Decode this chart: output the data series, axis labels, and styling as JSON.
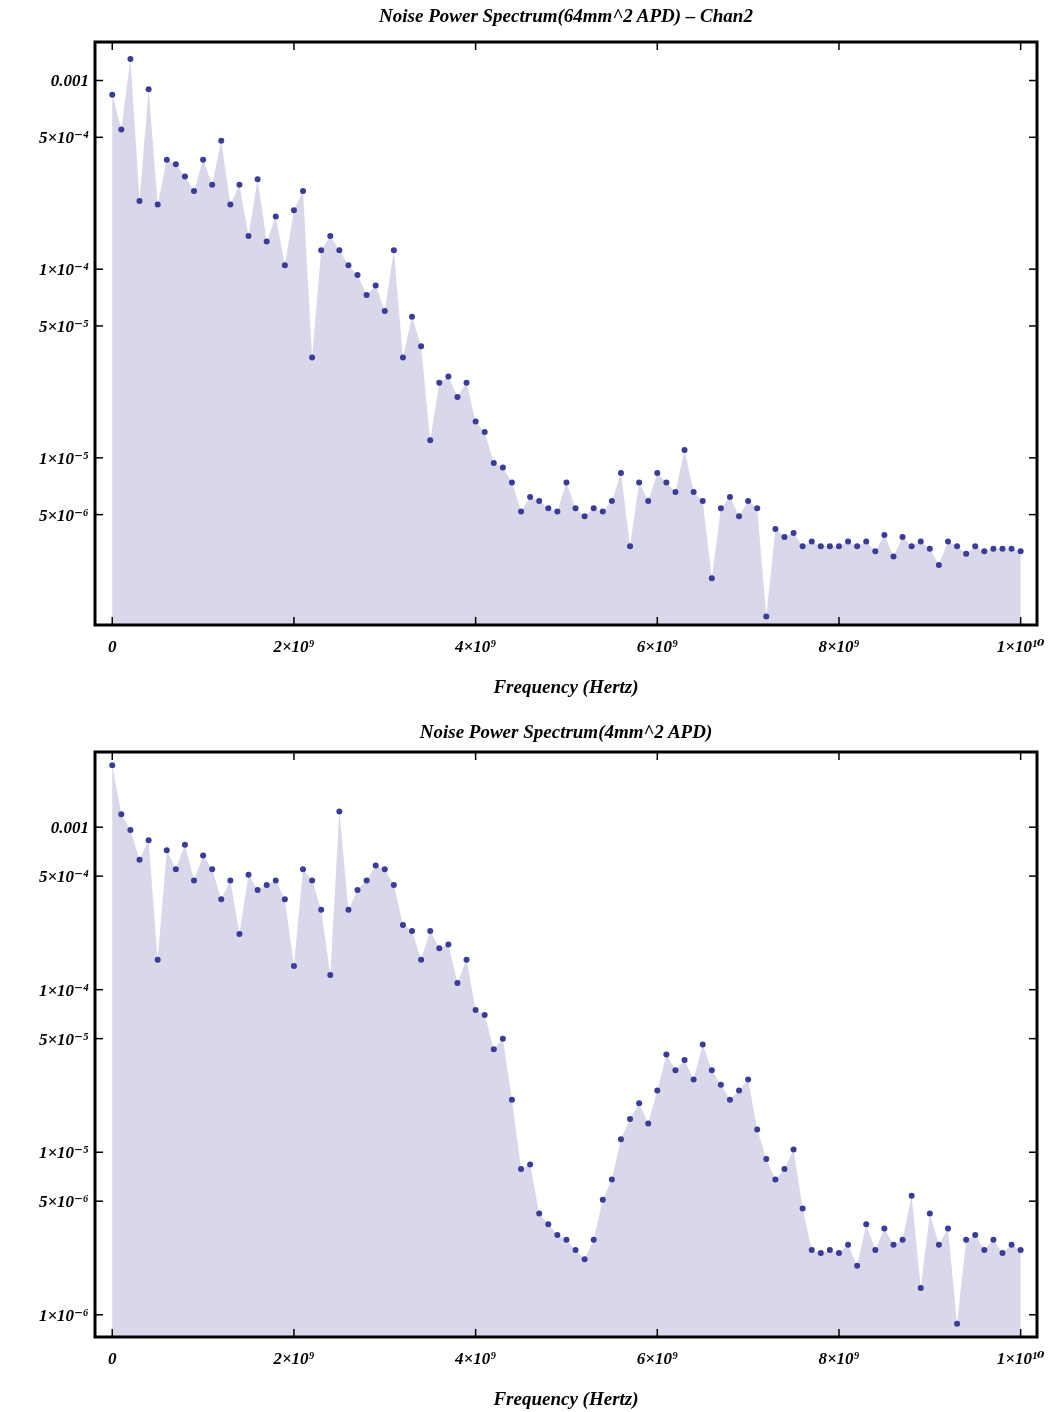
{
  "chart_data": [
    {
      "type": "area",
      "title": "Noise Power Spectrum(64mm^2 APD) – Chan2",
      "xlabel": "Frequency (Hertz)",
      "log": "y",
      "marker": "circle",
      "xlim": [
        -190000000.0,
        10180000000.0
      ],
      "ylim": [
        1.3e-06,
        0.0016
      ],
      "xticks": [
        0,
        {
          "value": 2000000000.0,
          "label": "2×10⁹"
        },
        {
          "value": 4000000000.0,
          "label": "4×10⁹"
        },
        {
          "value": 6000000000.0,
          "label": "6×10⁹"
        },
        {
          "value": 8000000000.0,
          "label": "8×10⁹"
        },
        {
          "value": 10000000000.0,
          "label": "1×10¹⁰"
        }
      ],
      "yticks": [
        0.001,
        {
          "value": 0.0005,
          "label": "5×10⁻⁴"
        },
        {
          "value": 0.0001,
          "label": "1×10⁻⁴"
        },
        {
          "value": 5e-05,
          "label": "5×10⁻⁵"
        },
        {
          "value": 1e-05,
          "label": "1×10⁻⁵"
        },
        {
          "value": 5e-06,
          "label": "5×10⁻⁶"
        }
      ],
      "x": [
        0,
        100000000.0,
        200000000.0,
        300000000.0,
        400000000.0,
        500000000.0,
        600000000.0,
        700000000.0,
        800000000.0,
        900000000.0,
        1000000000.0,
        1100000000.0,
        1200000000.0,
        1300000000.0,
        1400000000.0,
        1500000000.0,
        1600000000.0,
        1700000000.0,
        1800000000.0,
        1900000000.0,
        2000000000.0,
        2100000000.0,
        2200000000.0,
        2300000000.0,
        2400000000.0,
        2500000000.0,
        2600000000.0,
        2700000000.0,
        2800000000.0,
        2900000000.0,
        3000000000.0,
        3100000000.0,
        3200000000.0,
        3300000000.0,
        3400000000.0,
        3500000000.0,
        3600000000.0,
        3700000000.0,
        3800000000.0,
        3900000000.0,
        4000000000.0,
        4100000000.0,
        4200000000.0,
        4300000000.0,
        4400000000.0,
        4500000000.0,
        4600000000.0,
        4700000000.0,
        4800000000.0,
        4900000000.0,
        5000000000.0,
        5100000000.0,
        5200000000.0,
        5300000000.0,
        5400000000.0,
        5500000000.0,
        5600000000.0,
        5700000000.0,
        5800000000.0,
        5900000000.0,
        6000000000.0,
        6100000000.0,
        6200000000.0,
        6300000000.0,
        6400000000.0,
        6500000000.0,
        6600000000.0,
        6700000000.0,
        6800000000.0,
        6900000000.0,
        7000000000.0,
        7100000000.0,
        7200000000.0,
        7300000000.0,
        7400000000.0,
        7500000000.0,
        7600000000.0,
        7700000000.0,
        7800000000.0,
        7900000000.0,
        8000000000.0,
        8100000000.0,
        8200000000.0,
        8300000000.0,
        8400000000.0,
        8500000000.0,
        8600000000.0,
        8700000000.0,
        8800000000.0,
        8900000000.0,
        9000000000.0,
        9100000000.0,
        9200000000.0,
        9300000000.0,
        9400000000.0,
        9500000000.0,
        9600000000.0,
        9700000000.0,
        9800000000.0,
        9900000000.0,
        10000000000.0
      ],
      "series": [
        {
          "color": "#3b3b98",
          "values": [
            0.00084,
            0.00055,
            0.0013,
            0.00023,
            0.0009,
            0.00022,
            0.00038,
            0.00036,
            0.00031,
            0.00026,
            0.00038,
            0.00028,
            0.00048,
            0.00022,
            0.00028,
            0.00015,
            0.0003,
            0.00014,
            0.00019,
            0.000105,
            0.000205,
            0.00026,
            3.4e-05,
            0.000126,
            0.00015,
            0.000126,
            0.000105,
            9.3e-05,
            7.3e-05,
            8.2e-05,
            6e-05,
            0.000126,
            3.4e-05,
            5.6e-05,
            3.9e-05,
            1.24e-05,
            2.5e-05,
            2.7e-05,
            2.1e-05,
            2.5e-05,
            1.56e-05,
            1.37e-05,
            9.4e-06,
            8.9e-06,
            7.4e-06,
            5.2e-06,
            6.2e-06,
            5.9e-06,
            5.4e-06,
            5.2e-06,
            7.4e-06,
            5.4e-06,
            4.9e-06,
            5.4e-06,
            5.2e-06,
            5.9e-06,
            8.3e-06,
            3.4e-06,
            7.4e-06,
            5.9e-06,
            8.3e-06,
            7.4e-06,
            6.6e-06,
            1.1e-05,
            6.6e-06,
            5.9e-06,
            2.3e-06,
            5.4e-06,
            6.2e-06,
            4.9e-06,
            5.9e-06,
            5.4e-06,
            1.44e-06,
            4.2e-06,
            3.8e-06,
            4e-06,
            3.4e-06,
            3.6e-06,
            3.4e-06,
            3.4e-06,
            3.4e-06,
            3.6e-06,
            3.4e-06,
            3.6e-06,
            3.2e-06,
            3.9e-06,
            3e-06,
            3.8e-06,
            3.4e-06,
            3.6e-06,
            3.3e-06,
            2.7e-06,
            3.6e-06,
            3.4e-06,
            3.1e-06,
            3.4e-06,
            3.2e-06,
            3.3e-06,
            3.3e-06,
            3.3e-06,
            3.2e-06
          ]
        }
      ]
    },
    {
      "type": "area",
      "title": "Noise Power Spectrum(4mm^2 APD)",
      "xlabel": "Frequency (Hertz)",
      "log": "y",
      "marker": "circle",
      "xlim": [
        -190000000.0,
        10180000000.0
      ],
      "ylim": [
        7.3e-07,
        0.0029
      ],
      "xticks": [
        0,
        {
          "value": 2000000000.0,
          "label": "2×10⁹"
        },
        {
          "value": 4000000000.0,
          "label": "4×10⁹"
        },
        {
          "value": 6000000000.0,
          "label": "6×10⁹"
        },
        {
          "value": 8000000000.0,
          "label": "8×10⁹"
        },
        {
          "value": 10000000000.0,
          "label": "1×10¹⁰"
        }
      ],
      "yticks": [
        0.001,
        {
          "value": 0.0005,
          "label": "5×10⁻⁴"
        },
        {
          "value": 0.0001,
          "label": "1×10⁻⁴"
        },
        {
          "value": 5e-05,
          "label": "5×10⁻⁵"
        },
        {
          "value": 1e-05,
          "label": "1×10⁻⁵"
        },
        {
          "value": 5e-06,
          "label": "5×10⁻⁶"
        },
        {
          "value": 1e-06,
          "label": "1×10⁻⁶"
        }
      ],
      "x": [
        0,
        100000000.0,
        200000000.0,
        300000000.0,
        400000000.0,
        500000000.0,
        600000000.0,
        700000000.0,
        800000000.0,
        900000000.0,
        1000000000.0,
        1100000000.0,
        1200000000.0,
        1300000000.0,
        1400000000.0,
        1500000000.0,
        1600000000.0,
        1700000000.0,
        1800000000.0,
        1900000000.0,
        2000000000.0,
        2100000000.0,
        2200000000.0,
        2300000000.0,
        2400000000.0,
        2500000000.0,
        2600000000.0,
        2700000000.0,
        2800000000.0,
        2900000000.0,
        3000000000.0,
        3100000000.0,
        3200000000.0,
        3300000000.0,
        3400000000.0,
        3500000000.0,
        3600000000.0,
        3700000000.0,
        3800000000.0,
        3900000000.0,
        4000000000.0,
        4100000000.0,
        4200000000.0,
        4300000000.0,
        4400000000.0,
        4500000000.0,
        4600000000.0,
        4700000000.0,
        4800000000.0,
        4900000000.0,
        5000000000.0,
        5100000000.0,
        5200000000.0,
        5300000000.0,
        5400000000.0,
        5500000000.0,
        5600000000.0,
        5700000000.0,
        5800000000.0,
        5900000000.0,
        6000000000.0,
        6100000000.0,
        6200000000.0,
        6300000000.0,
        6400000000.0,
        6500000000.0,
        6600000000.0,
        6700000000.0,
        6800000000.0,
        6900000000.0,
        7000000000.0,
        7100000000.0,
        7200000000.0,
        7300000000.0,
        7400000000.0,
        7500000000.0,
        7600000000.0,
        7700000000.0,
        7800000000.0,
        7900000000.0,
        8000000000.0,
        8100000000.0,
        8200000000.0,
        8300000000.0,
        8400000000.0,
        8500000000.0,
        8600000000.0,
        8700000000.0,
        8800000000.0,
        8900000000.0,
        9000000000.0,
        9100000000.0,
        9200000000.0,
        9300000000.0,
        9400000000.0,
        9500000000.0,
        9600000000.0,
        9700000000.0,
        9800000000.0,
        9900000000.0,
        10000000000.0
      ],
      "series": [
        {
          "color": "#3b3b98",
          "values": [
            0.0024,
            0.0012,
            0.00096,
            0.00063,
            0.00083,
            0.000153,
            0.00072,
            0.00055,
            0.00078,
            0.00047,
            0.00067,
            0.00055,
            0.00036,
            0.00047,
            0.00022,
            0.00051,
            0.00041,
            0.00044,
            0.00047,
            0.00036,
            0.00014,
            0.00055,
            0.00047,
            0.00031,
            0.000123,
            0.00125,
            0.00031,
            0.00041,
            0.00047,
            0.00058,
            0.00055,
            0.00044,
            0.00025,
            0.00023,
            0.000153,
            0.00023,
            0.00018,
            0.00019,
            0.00011,
            0.000153,
            7.5e-05,
            7e-05,
            4.3e-05,
            5e-05,
            2.1e-05,
            7.9e-06,
            8.4e-06,
            4.2e-06,
            3.6e-06,
            3.1e-06,
            2.9e-06,
            2.5e-06,
            2.2e-06,
            2.9e-06,
            5.1e-06,
            6.8e-06,
            1.2e-05,
            1.6e-05,
            2e-05,
            1.5e-05,
            2.4e-05,
            4e-05,
            3.2e-05,
            3.7e-05,
            2.8e-05,
            4.6e-05,
            3.2e-05,
            2.6e-05,
            2.1e-05,
            2.4e-05,
            2.8e-05,
            1.38e-05,
            9.1e-06,
            6.8e-06,
            7.9e-06,
            1.04e-05,
            4.5e-06,
            2.5e-06,
            2.4e-06,
            2.5e-06,
            2.4e-06,
            2.7e-06,
            2e-06,
            3.6e-06,
            2.5e-06,
            3.4e-06,
            2.7e-06,
            2.9e-06,
            5.4e-06,
            1.46e-06,
            4.2e-06,
            2.7e-06,
            3.4e-06,
            8.8e-07,
            2.9e-06,
            3.1e-06,
            2.5e-06,
            2.9e-06,
            2.4e-06,
            2.7e-06,
            2.5e-06
          ]
        }
      ]
    }
  ]
}
